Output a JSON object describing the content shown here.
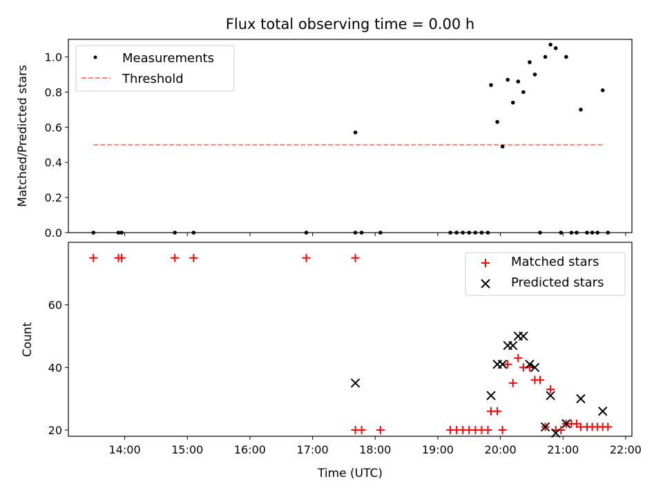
{
  "chart_data": [
    {
      "type": "scatter",
      "title": "Flux total observing time = 0.00 h",
      "ylabel": "Matched/Predicted stars",
      "xlabel": "",
      "ylim": [
        0,
        1.1
      ],
      "xlim_hours": [
        13.1,
        22.1
      ],
      "yticks": [
        0.0,
        0.2,
        0.4,
        0.6,
        0.8,
        1.0
      ],
      "ytick_labels": [
        "0.0",
        "0.2",
        "0.4",
        "0.6",
        "0.8",
        "1.0"
      ],
      "legend_position": "top-left",
      "series": [
        {
          "name": "Measurements",
          "marker": "dot",
          "color": "#000000",
          "points": [
            [
              "13:30",
              0.0
            ],
            [
              "13:54",
              0.0
            ],
            [
              "13:57",
              0.0
            ],
            [
              "14:48",
              0.0
            ],
            [
              "15:06",
              0.0
            ],
            [
              "16:54",
              0.0
            ],
            [
              "17:41",
              0.0
            ],
            [
              "17:41",
              0.57
            ],
            [
              "17:47",
              0.0
            ],
            [
              "18:05",
              0.0
            ],
            [
              "19:12",
              0.0
            ],
            [
              "19:18",
              0.0
            ],
            [
              "19:24",
              0.0
            ],
            [
              "19:30",
              0.0
            ],
            [
              "19:36",
              0.0
            ],
            [
              "19:42",
              0.0
            ],
            [
              "19:48",
              0.0
            ],
            [
              "19:51",
              0.84
            ],
            [
              "19:57",
              0.63
            ],
            [
              "20:02",
              0.49
            ],
            [
              "20:07",
              0.87
            ],
            [
              "20:12",
              0.74
            ],
            [
              "20:17",
              0.86
            ],
            [
              "20:22",
              0.8
            ],
            [
              "20:28",
              0.97
            ],
            [
              "20:33",
              0.9
            ],
            [
              "20:38",
              0.0
            ],
            [
              "20:43",
              1.0
            ],
            [
              "20:48",
              1.07
            ],
            [
              "20:53",
              1.05
            ],
            [
              "20:58",
              0.0
            ],
            [
              "21:03",
              1.0
            ],
            [
              "21:08",
              0.0
            ],
            [
              "21:13",
              0.0
            ],
            [
              "21:17",
              0.7
            ],
            [
              "21:23",
              0.0
            ],
            [
              "21:28",
              0.0
            ],
            [
              "21:33",
              0.0
            ],
            [
              "21:38",
              0.81
            ],
            [
              "21:43",
              0.0
            ]
          ]
        },
        {
          "name": "Threshold",
          "marker": "dashed-line",
          "color": "#ff7f7f",
          "points": [
            [
              "13:30",
              0.5
            ],
            [
              "21:40",
              0.5
            ]
          ]
        }
      ]
    },
    {
      "type": "scatter",
      "title": "",
      "ylabel": "Count",
      "xlabel": "Time (UTC)",
      "ylim": [
        18,
        80
      ],
      "xlim_hours": [
        13.1,
        22.1
      ],
      "yticks": [
        20,
        40,
        60
      ],
      "ytick_labels": [
        "20",
        "40",
        "60"
      ],
      "xticks": [
        "14:00",
        "15:00",
        "16:00",
        "17:00",
        "18:00",
        "19:00",
        "20:00",
        "21:00",
        "22:00"
      ],
      "legend_position": "top-right",
      "series": [
        {
          "name": "Matched stars",
          "marker": "plus",
          "color": "#ff0000",
          "points": [
            [
              "13:30",
              75
            ],
            [
              "13:54",
              75
            ],
            [
              "13:57",
              75
            ],
            [
              "14:48",
              75
            ],
            [
              "15:06",
              75
            ],
            [
              "16:54",
              75
            ],
            [
              "17:41",
              75
            ],
            [
              "17:41",
              20
            ],
            [
              "17:47",
              20
            ],
            [
              "18:05",
              20
            ],
            [
              "19:12",
              20
            ],
            [
              "19:18",
              20
            ],
            [
              "19:24",
              20
            ],
            [
              "19:30",
              20
            ],
            [
              "19:36",
              20
            ],
            [
              "19:42",
              20
            ],
            [
              "19:48",
              20
            ],
            [
              "19:51",
              26
            ],
            [
              "19:57",
              26
            ],
            [
              "20:02",
              20
            ],
            [
              "20:07",
              41
            ],
            [
              "20:12",
              35
            ],
            [
              "20:17",
              43
            ],
            [
              "20:22",
              40
            ],
            [
              "20:28",
              40
            ],
            [
              "20:33",
              36
            ],
            [
              "20:38",
              36
            ],
            [
              "20:43",
              21
            ],
            [
              "20:48",
              33
            ],
            [
              "20:53",
              20
            ],
            [
              "20:58",
              20
            ],
            [
              "21:03",
              22
            ],
            [
              "21:08",
              22
            ],
            [
              "21:13",
              22
            ],
            [
              "21:17",
              21
            ],
            [
              "21:23",
              21
            ],
            [
              "21:28",
              21
            ],
            [
              "21:33",
              21
            ],
            [
              "21:38",
              21
            ],
            [
              "21:43",
              21
            ]
          ]
        },
        {
          "name": "Predicted stars",
          "marker": "x",
          "color": "#000000",
          "points": [
            [
              "17:41",
              35
            ],
            [
              "19:51",
              31
            ],
            [
              "19:57",
              41
            ],
            [
              "20:02",
              41
            ],
            [
              "20:07",
              47
            ],
            [
              "20:12",
              47
            ],
            [
              "20:17",
              50
            ],
            [
              "20:22",
              50
            ],
            [
              "20:28",
              41
            ],
            [
              "20:33",
              40
            ],
            [
              "20:43",
              21
            ],
            [
              "20:48",
              31
            ],
            [
              "20:53",
              19
            ],
            [
              "21:03",
              22
            ],
            [
              "21:17",
              30
            ],
            [
              "21:38",
              26
            ]
          ]
        }
      ]
    }
  ]
}
